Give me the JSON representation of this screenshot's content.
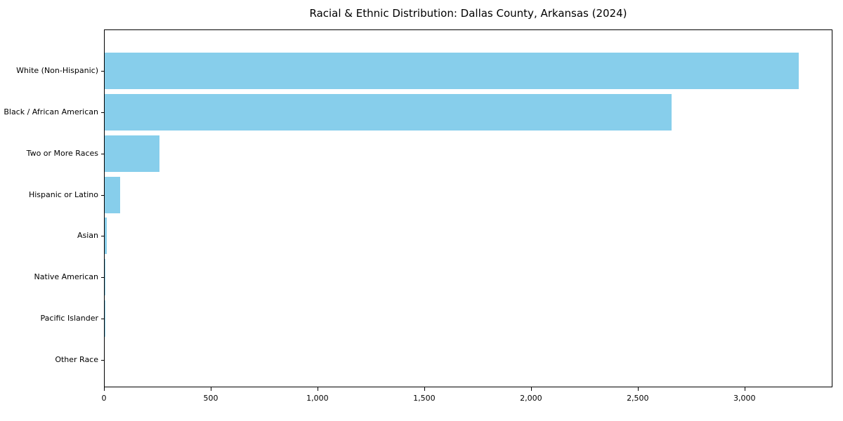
{
  "chart_data": {
    "type": "bar",
    "orientation": "horizontal",
    "title": "Racial & Ethnic Distribution: Dallas County, Arkansas (2024)",
    "categories": [
      "White (Non-Hispanic)",
      "Black / African American",
      "Two or More Races",
      "Hispanic or Latino",
      "Asian",
      "Native American",
      "Pacific Islander",
      "Other Race"
    ],
    "values": [
      3250,
      2655,
      255,
      72,
      10,
      4,
      2,
      0
    ],
    "xlim": [
      0,
      3412
    ],
    "xticks": [
      0,
      500,
      1000,
      1500,
      2000,
      2500,
      3000
    ],
    "xtick_labels": [
      "0",
      "500",
      "1,000",
      "1,500",
      "2,000",
      "2,500",
      "3,000"
    ],
    "bar_color": "#87CEEB",
    "grid": false,
    "legend": false,
    "xlabel": "",
    "ylabel": ""
  }
}
